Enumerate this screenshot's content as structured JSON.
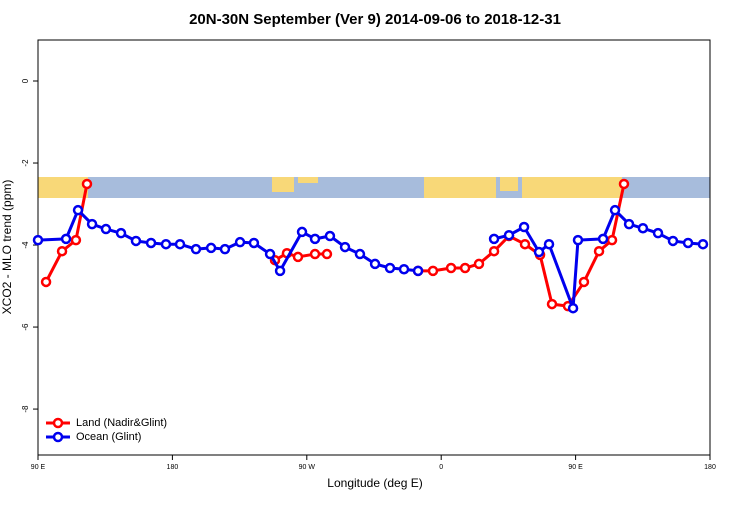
{
  "chart_data": {
    "type": "line",
    "title": "20N-30N September (Ver 9)   2014-09-06 to 2018-12-31",
    "x_label": "Longitude (deg E)",
    "y_label": "XCO2 - MLO trend (ppm)",
    "xlim": [
      90,
      540
    ],
    "ylim": [
      -9.12,
      1.0
    ],
    "xticks": [
      {
        "value": 90,
        "label": "90 E"
      },
      180,
      {
        "value": 270,
        "label": "90 W"
      },
      {
        "value": 360,
        "label": "0"
      },
      {
        "value": 450,
        "label": "90 E"
      },
      {
        "value": 540,
        "label": "180"
      }
    ],
    "yticks": [
      0,
      -2,
      -4,
      -6,
      -8
    ],
    "legend": "bottom-left",
    "series": [
      {
        "name": "Land (Nadir&Glint)",
        "color": "#ff0000",
        "x": [
          95.4,
          106.1,
          115.4,
          122.8,
          null,
          248.7,
          256.7,
          264.1,
          275.5,
          283.5,
          null,
          344.5,
          354.5,
          366.6,
          376.0,
          385.3,
          395.4,
          405.4,
          416.1,
          426.2,
          434.2,
          444.9,
          455.6,
          465.7,
          474.4,
          482.4
        ],
        "values": [
          -4.9,
          -4.15,
          -3.88,
          -2.51,
          null,
          -4.37,
          -4.2,
          -4.29,
          -4.22,
          -4.22,
          null,
          -4.63,
          -4.63,
          -4.56,
          -4.56,
          -4.46,
          -4.15,
          -3.78,
          -3.98,
          -4.24,
          -5.44,
          -5.49,
          -4.9,
          -4.15,
          -3.88,
          -2.51
        ]
      },
      {
        "name": "Ocean (Glint)",
        "color": "#0000ee",
        "x": [
          90,
          108.8,
          116.8,
          126.2,
          135.5,
          145.6,
          155.6,
          165.7,
          175.7,
          185.1,
          195.8,
          205.9,
          215.2,
          225.3,
          234.6,
          245.4,
          252.1,
          266.8,
          275.5,
          285.5,
          295.6,
          305.6,
          315.7,
          325.7,
          335.1,
          344.5,
          null,
          395.4,
          405.4,
          415.5,
          425.5,
          432.2,
          448.3,
          451.6,
          468.4,
          476.4,
          485.8,
          495.1,
          505.2,
          515.2,
          525.3,
          535.3
        ],
        "values": [
          -3.88,
          -3.85,
          -3.15,
          -3.49,
          -3.61,
          -3.71,
          -3.9,
          -3.95,
          -3.98,
          -3.98,
          -4.1,
          -4.07,
          -4.1,
          -3.93,
          -3.95,
          -4.22,
          -4.63,
          -3.68,
          -3.85,
          -3.78,
          -4.05,
          -4.22,
          -4.46,
          -4.56,
          -4.59,
          -4.63,
          null,
          -3.85,
          -3.76,
          -3.56,
          -4.17,
          -3.98,
          -5.54,
          -3.88,
          -3.85,
          -3.15,
          -3.49,
          -3.59,
          -3.71,
          -3.9,
          -3.95,
          -3.98
        ]
      }
    ]
  }
}
